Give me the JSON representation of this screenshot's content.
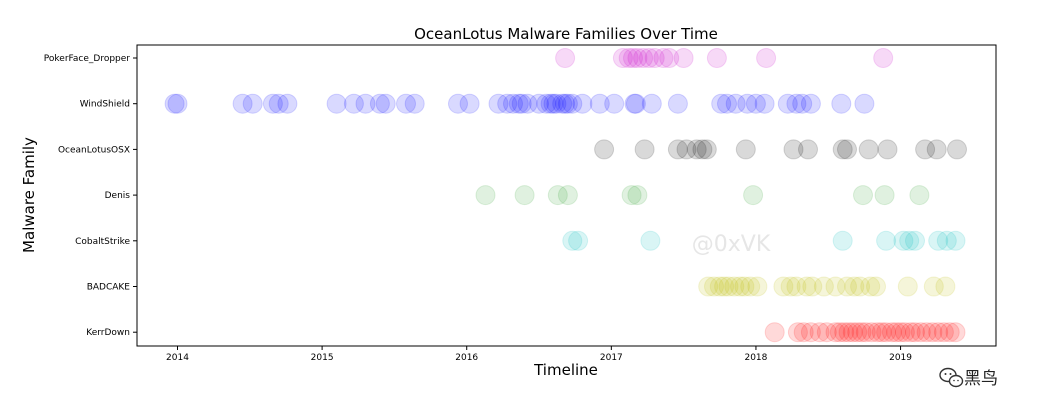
{
  "chart_data": {
    "type": "scatter",
    "title": "OceanLotus Malware Families Over Time",
    "xlabel": "Timeline",
    "ylabel": "Malware Family",
    "x_ticks": [
      "2014",
      "2015",
      "2016",
      "2017",
      "2018",
      "2019"
    ],
    "xlim": [
      2013.72,
      2019.66
    ],
    "categories": [
      "PokerFace_Dropper",
      "WindShield",
      "OceanLotusOSX",
      "Denis",
      "CobaltStrike",
      "BADCAKE",
      "KerrDown"
    ],
    "grid": false,
    "legend": "none",
    "series": [
      {
        "category": "PokerFace_Dropper",
        "color": "#cc00cc",
        "x": [
          2016.68,
          2017.08,
          2017.12,
          2017.15,
          2017.18,
          2017.22,
          2017.26,
          2017.3,
          2017.36,
          2017.4,
          2017.5,
          2017.73,
          2018.07,
          2018.88
        ]
      },
      {
        "category": "WindShield",
        "color": "#0000ff",
        "x": [
          2013.98,
          2014.0,
          2014.45,
          2014.52,
          2014.66,
          2014.7,
          2014.76,
          2015.1,
          2015.22,
          2015.3,
          2015.4,
          2015.44,
          2015.58,
          2015.64,
          2015.94,
          2016.02,
          2016.22,
          2016.28,
          2016.32,
          2016.36,
          2016.38,
          2016.42,
          2016.5,
          2016.55,
          2016.58,
          2016.6,
          2016.62,
          2016.66,
          2016.68,
          2016.7,
          2016.73,
          2016.8,
          2016.92,
          2017.02,
          2017.16,
          2017.17,
          2017.28,
          2017.46,
          2017.76,
          2017.8,
          2017.86,
          2017.94,
          2018.0,
          2018.06,
          2018.22,
          2018.28,
          2018.32,
          2018.38,
          2018.59,
          2018.75
        ]
      },
      {
        "category": "OceanLotusOSX",
        "color": "#000000",
        "x": [
          2016.95,
          2017.23,
          2017.46,
          2017.52,
          2017.59,
          2017.63,
          2017.66,
          2017.93,
          2018.26,
          2018.36,
          2018.6,
          2018.63,
          2018.78,
          2018.91,
          2019.17,
          2019.25,
          2019.39
        ]
      },
      {
        "category": "Denis",
        "color": "#2ca02c",
        "x": [
          2016.13,
          2016.4,
          2016.63,
          2016.7,
          2017.14,
          2017.18,
          2017.98,
          2018.74,
          2018.89,
          2019.13
        ]
      },
      {
        "category": "CobaltStrike",
        "color": "#00bfbf",
        "x": [
          2016.73,
          2016.77,
          2017.27,
          2018.6,
          2018.9,
          2019.02,
          2019.06,
          2019.1,
          2019.26,
          2019.32,
          2019.38
        ]
      },
      {
        "category": "BADCAKE",
        "color": "#bfbf00",
        "x": [
          2017.67,
          2017.71,
          2017.75,
          2017.78,
          2017.81,
          2017.85,
          2017.89,
          2017.92,
          2017.96,
          2018.01,
          2018.19,
          2018.24,
          2018.28,
          2018.35,
          2018.39,
          2018.47,
          2018.55,
          2018.63,
          2018.68,
          2018.72,
          2018.79,
          2018.83,
          2019.05,
          2019.23,
          2019.31
        ]
      },
      {
        "category": "KerrDown",
        "color": "#ff0000",
        "x": [
          2018.13,
          2018.29,
          2018.33,
          2018.38,
          2018.44,
          2018.49,
          2018.55,
          2018.58,
          2018.61,
          2018.64,
          2018.67,
          2018.7,
          2018.73,
          2018.76,
          2018.8,
          2018.84,
          2018.87,
          2018.9,
          2018.94,
          2018.97,
          2019.0,
          2019.03,
          2019.07,
          2019.1,
          2019.14,
          2019.18,
          2019.22,
          2019.26,
          2019.3,
          2019.34,
          2019.38
        ]
      }
    ],
    "point_opacity": 0.15,
    "annotations": [
      "@0xVK"
    ]
  },
  "branding": {
    "icon": "wechat-icon",
    "text": "黑鸟"
  }
}
